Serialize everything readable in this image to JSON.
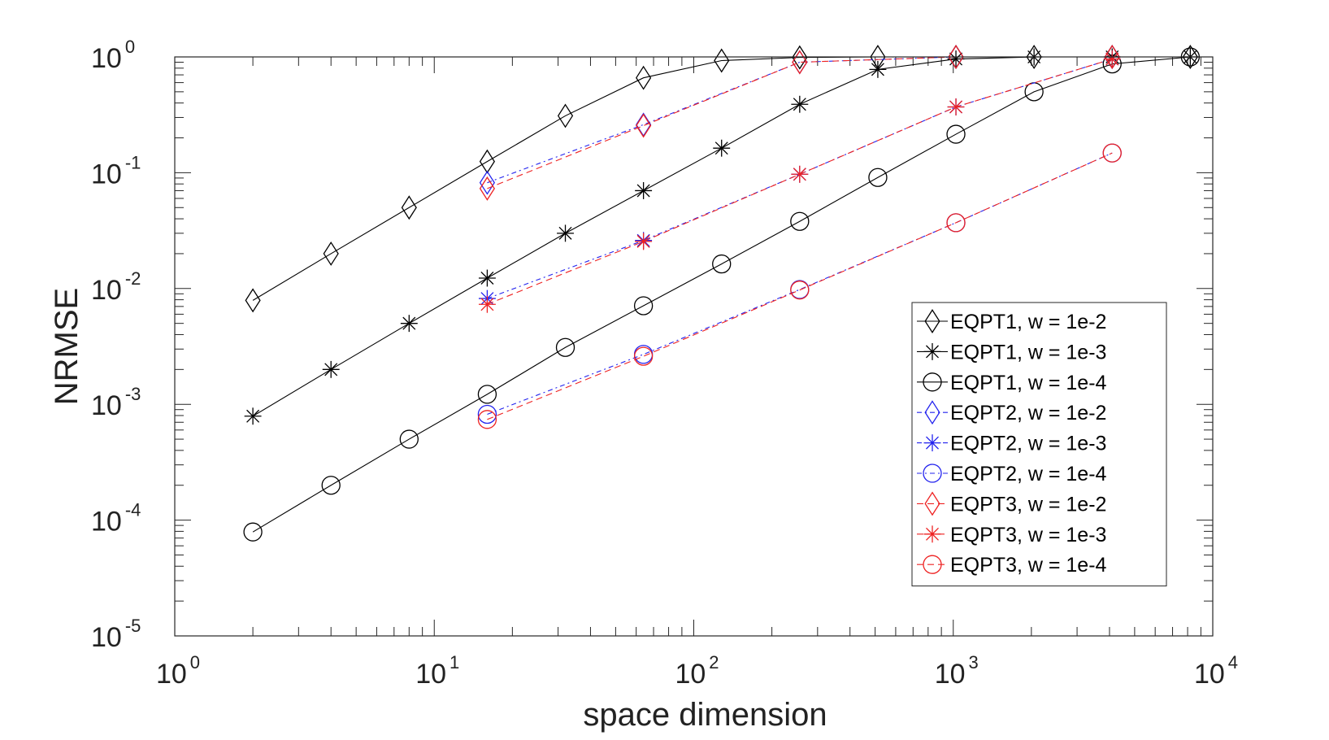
{
  "chart_data": {
    "type": "line",
    "xscale": "log",
    "yscale": "log",
    "xlim": [
      1,
      10000
    ],
    "ylim": [
      1e-05,
      1
    ],
    "xlabel": "space dimension",
    "ylabel": "NRMSE",
    "x_ticks": [
      {
        "base": "10",
        "exp": "0"
      },
      {
        "base": "10",
        "exp": "1"
      },
      {
        "base": "10",
        "exp": "2"
      },
      {
        "base": "10",
        "exp": "3"
      },
      {
        "base": "10",
        "exp": "4"
      }
    ],
    "y_ticks": [
      {
        "base": "10",
        "exp": "0"
      },
      {
        "base": "10",
        "exp": "-1"
      },
      {
        "base": "10",
        "exp": "-2"
      },
      {
        "base": "10",
        "exp": "-3"
      },
      {
        "base": "10",
        "exp": "-4"
      },
      {
        "base": "10",
        "exp": "-5"
      }
    ],
    "legend_position": "lower-right",
    "series": [
      {
        "name": "EQPT1, w = 1e-2",
        "color": "#000000",
        "marker": "diamond",
        "dash": "solid",
        "x": [
          2,
          4,
          8,
          16,
          32,
          64,
          128,
          256,
          512,
          1024,
          2048,
          4096,
          8192
        ],
        "y": [
          0.0079,
          0.02,
          0.05,
          0.125,
          0.31,
          0.66,
          0.93,
          0.99,
          1.0,
          1.0,
          1.0,
          1.0,
          1.0
        ]
      },
      {
        "name": "EQPT1, w = 1e-3",
        "color": "#000000",
        "marker": "star",
        "dash": "solid",
        "x": [
          2,
          4,
          8,
          16,
          32,
          64,
          128,
          256,
          512,
          1024,
          2048,
          4096,
          8192
        ],
        "y": [
          0.00079,
          0.002,
          0.005,
          0.0123,
          0.03,
          0.07,
          0.163,
          0.39,
          0.78,
          0.96,
          1.0,
          1.0,
          1.0
        ]
      },
      {
        "name": "EQPT1, w = 1e-4",
        "color": "#000000",
        "marker": "circle",
        "dash": "solid",
        "x": [
          2,
          4,
          8,
          16,
          32,
          64,
          128,
          256,
          512,
          1024,
          2048,
          4096,
          8192
        ],
        "y": [
          7.9e-05,
          0.0002,
          0.0005,
          0.00122,
          0.0031,
          0.0071,
          0.0163,
          0.038,
          0.091,
          0.215,
          0.5,
          0.87,
          1.0
        ]
      },
      {
        "name": "EQPT2, w = 1e-2",
        "color": "#2222ee",
        "marker": "diamond",
        "dash": "6,4,2,4",
        "x": [
          16,
          64,
          256,
          1024,
          4096
        ],
        "y": [
          0.082,
          0.26,
          0.9,
          1.0,
          1.0
        ]
      },
      {
        "name": "EQPT2, w = 1e-3",
        "color": "#2222ee",
        "marker": "star",
        "dash": "6,4,2,4",
        "x": [
          16,
          64,
          256,
          1024,
          4096
        ],
        "y": [
          0.0082,
          0.026,
          0.097,
          0.37,
          0.96
        ]
      },
      {
        "name": "EQPT2, w = 1e-4",
        "color": "#2222ee",
        "marker": "circle",
        "dash": "6,4,2,4",
        "x": [
          16,
          64,
          256,
          1024,
          4096
        ],
        "y": [
          0.00082,
          0.0027,
          0.0098,
          0.037,
          0.148
        ]
      },
      {
        "name": "EQPT3, w = 1e-2",
        "color": "#ee2222",
        "marker": "diamond",
        "dash": "8,5",
        "x": [
          16,
          64,
          256,
          1024,
          4096
        ],
        "y": [
          0.073,
          0.255,
          0.9,
          1.0,
          1.0
        ]
      },
      {
        "name": "EQPT3, w = 1e-3",
        "color": "#ee2222",
        "marker": "star",
        "dash": "8,5",
        "x": [
          16,
          64,
          256,
          1024,
          4096
        ],
        "y": [
          0.0073,
          0.0255,
          0.097,
          0.37,
          0.96
        ]
      },
      {
        "name": "EQPT3, w = 1e-4",
        "color": "#ee2222",
        "marker": "circle",
        "dash": "8,5",
        "x": [
          16,
          64,
          256,
          1024,
          4096
        ],
        "y": [
          0.00074,
          0.0026,
          0.0097,
          0.037,
          0.148
        ]
      }
    ]
  }
}
